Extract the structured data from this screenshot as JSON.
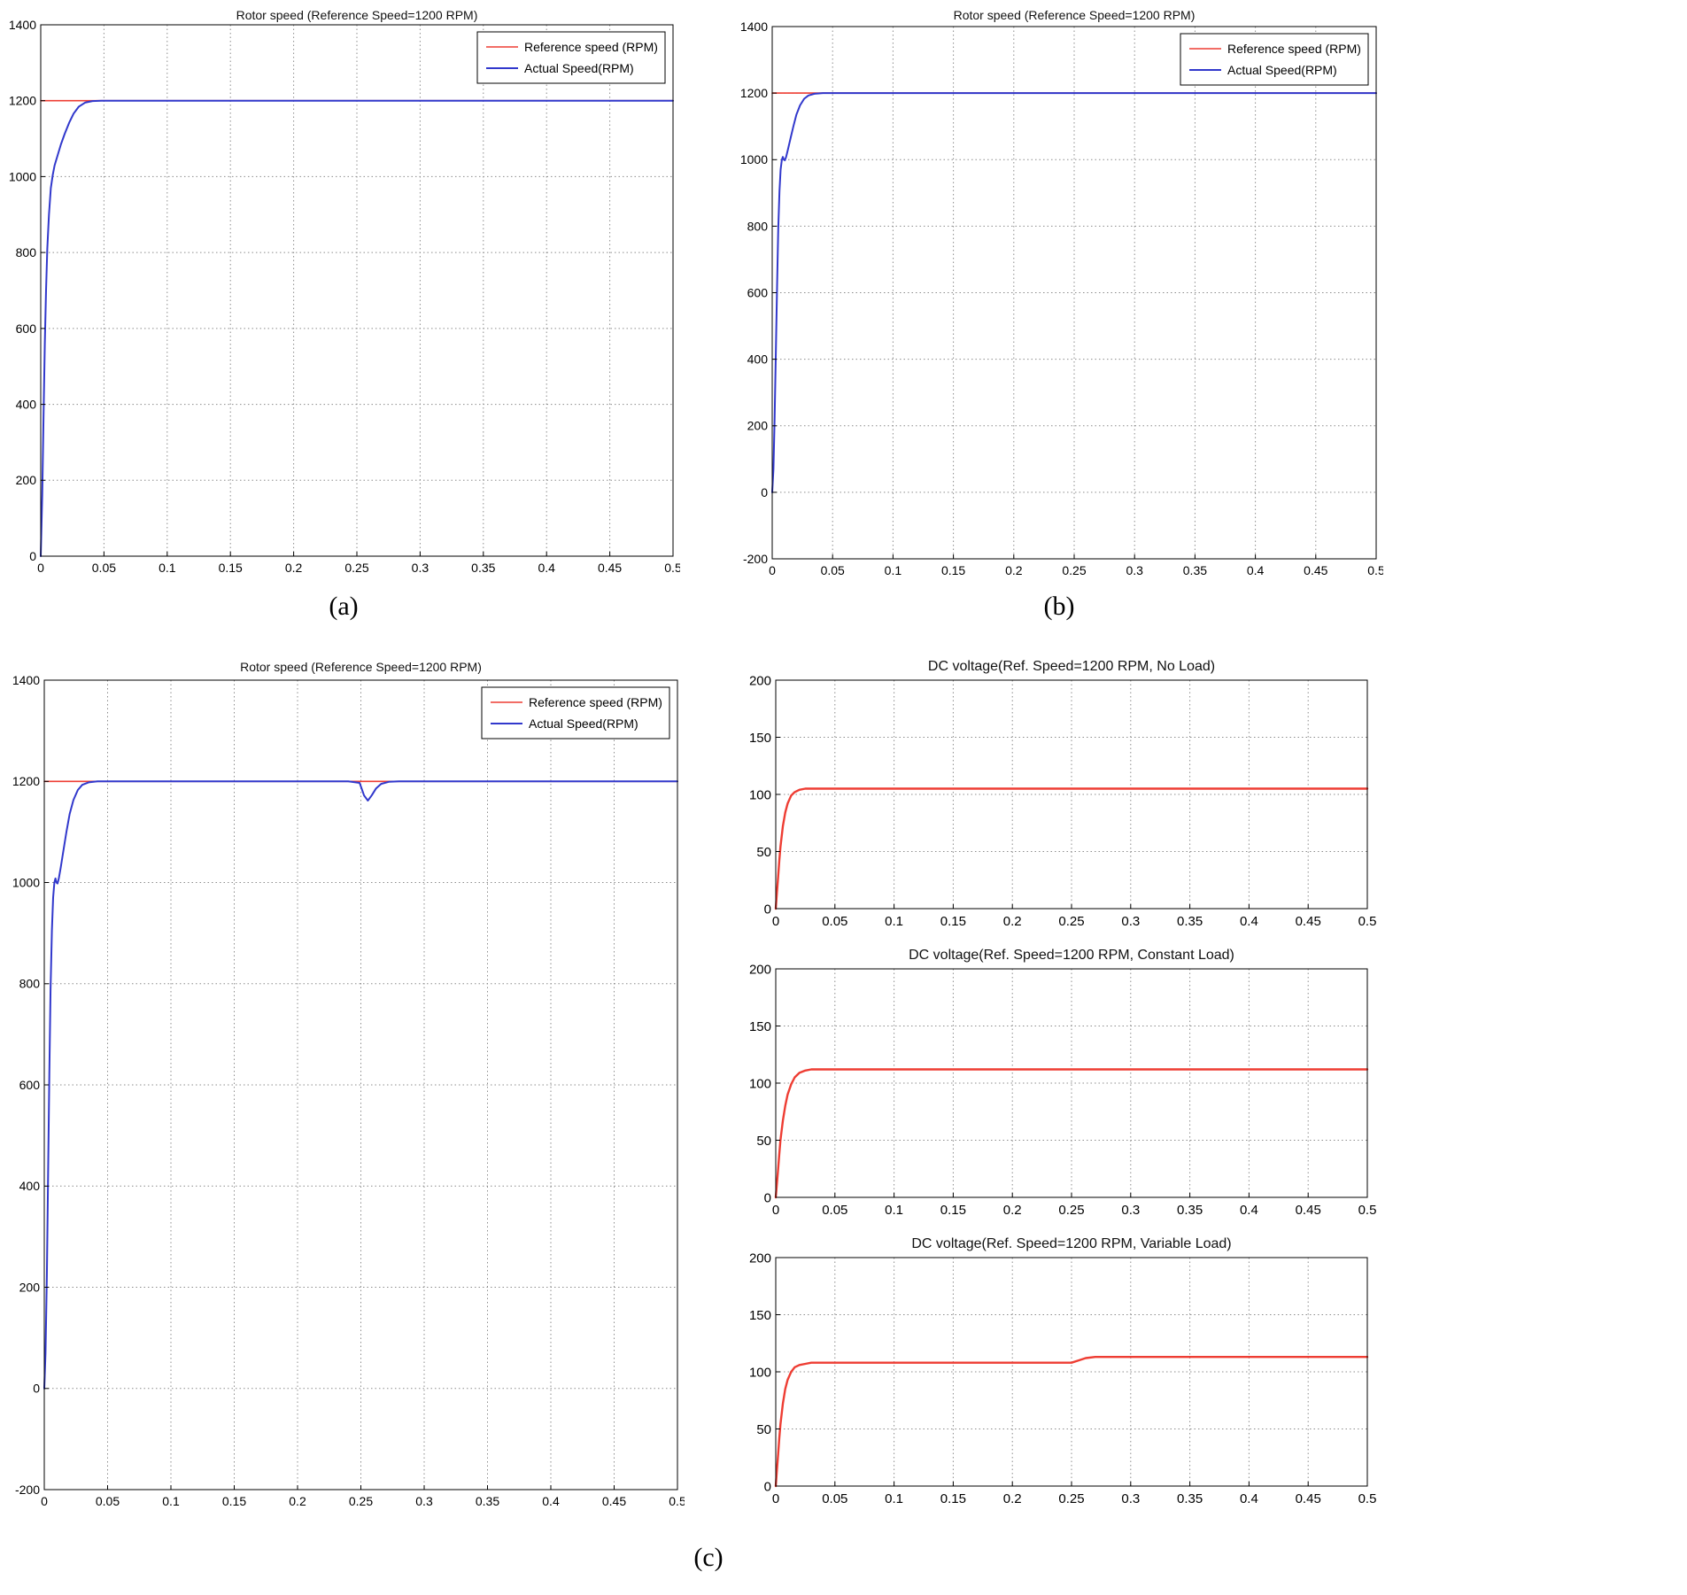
{
  "page": {
    "background": "#ffffff",
    "captions": [
      {
        "id": "a",
        "text": "(a)"
      },
      {
        "id": "b",
        "text": "(b)"
      },
      {
        "id": "c",
        "text": "(c)"
      }
    ]
  },
  "colors": {
    "reference_red": "#ee3d33",
    "actual_blue": "#3138cc",
    "grid": "#8c8c8c",
    "axis": "#000000"
  },
  "chart_data": [
    {
      "id": "rotor-speed-a",
      "type": "line",
      "title": "Rotor speed (Reference Speed=1200 RPM)",
      "xlim": [
        0,
        0.5
      ],
      "ylim": [
        0,
        1400
      ],
      "xticks": [
        0,
        0.05,
        0.1,
        0.15,
        0.2,
        0.25,
        0.3,
        0.35,
        0.4,
        0.45,
        0.5
      ],
      "yticks": [
        0,
        200,
        400,
        600,
        800,
        1000,
        1200,
        1400
      ],
      "grid": true,
      "legend": {
        "position": "northeast",
        "entries": [
          "Reference  speed (RPM)",
          "Actual Speed(RPM)"
        ]
      },
      "series": [
        {
          "name": "Reference  speed (RPM)",
          "color": "#ee3d33",
          "width": 1.6,
          "points": [
            [
              0,
              1200
            ],
            [
              0.5,
              1200
            ]
          ]
        },
        {
          "name": "Actual Speed(RPM)",
          "color": "#3138cc",
          "width": 2,
          "points": [
            [
              0,
              0
            ],
            [
              0.0012,
              160
            ],
            [
              0.0022,
              360
            ],
            [
              0.0032,
              560
            ],
            [
              0.0042,
              700
            ],
            [
              0.0052,
              810
            ],
            [
              0.0065,
              900
            ],
            [
              0.008,
              970
            ],
            [
              0.0095,
              1005
            ],
            [
              0.011,
              1030
            ],
            [
              0.0135,
              1058
            ],
            [
              0.016,
              1085
            ],
            [
              0.019,
              1113
            ],
            [
              0.0225,
              1142
            ],
            [
              0.026,
              1166
            ],
            [
              0.03,
              1184
            ],
            [
              0.035,
              1195
            ],
            [
              0.041,
              1199
            ],
            [
              0.048,
              1200
            ],
            [
              0.5,
              1200
            ]
          ]
        }
      ]
    },
    {
      "id": "rotor-speed-b",
      "type": "line",
      "title": "Rotor speed (Reference Speed=1200 RPM)",
      "xlim": [
        0,
        0.5
      ],
      "ylim": [
        -200,
        1400
      ],
      "xticks": [
        0,
        0.05,
        0.1,
        0.15,
        0.2,
        0.25,
        0.3,
        0.35,
        0.4,
        0.45,
        0.5
      ],
      "yticks": [
        -200,
        0,
        200,
        400,
        600,
        800,
        1000,
        1200,
        1400
      ],
      "grid": true,
      "legend": {
        "position": "northeast",
        "entries": [
          "Reference  speed (RPM)",
          "Actual Speed(RPM)"
        ]
      },
      "series": [
        {
          "name": "Reference  speed (RPM)",
          "color": "#ee3d33",
          "width": 1.6,
          "points": [
            [
              0,
              1200
            ],
            [
              0.5,
              1200
            ]
          ]
        },
        {
          "name": "Actual Speed(RPM)",
          "color": "#3138cc",
          "width": 2,
          "points": [
            [
              0,
              0
            ],
            [
              0.001,
              70
            ],
            [
              0.002,
              220
            ],
            [
              0.003,
              420
            ],
            [
              0.004,
              620
            ],
            [
              0.005,
              790
            ],
            [
              0.006,
              905
            ],
            [
              0.007,
              970
            ],
            [
              0.008,
              1000
            ],
            [
              0.0088,
              1008
            ],
            [
              0.0096,
              1000
            ],
            [
              0.0105,
              998
            ],
            [
              0.0115,
              1008
            ],
            [
              0.013,
              1030
            ],
            [
              0.015,
              1062
            ],
            [
              0.0175,
              1100
            ],
            [
              0.02,
              1135
            ],
            [
              0.023,
              1163
            ],
            [
              0.0265,
              1183
            ],
            [
              0.03,
              1193
            ],
            [
              0.035,
              1198
            ],
            [
              0.042,
              1200
            ],
            [
              0.5,
              1200
            ]
          ]
        }
      ]
    },
    {
      "id": "rotor-speed-c",
      "type": "line",
      "title": "Rotor speed (Reference Speed=1200 RPM)",
      "xlim": [
        0,
        0.5
      ],
      "ylim": [
        -200,
        1400
      ],
      "xticks": [
        0,
        0.05,
        0.1,
        0.15,
        0.2,
        0.25,
        0.3,
        0.35,
        0.4,
        0.45,
        0.5
      ],
      "yticks": [
        -200,
        0,
        200,
        400,
        600,
        800,
        1000,
        1200,
        1400
      ],
      "grid": true,
      "legend": {
        "position": "northeast",
        "entries": [
          "Reference  speed (RPM)",
          "Actual Speed(RPM)"
        ]
      },
      "series": [
        {
          "name": "Reference  speed (RPM)",
          "color": "#ee3d33",
          "width": 1.6,
          "points": [
            [
              0,
              1200
            ],
            [
              0.5,
              1200
            ]
          ]
        },
        {
          "name": "Actual Speed(RPM)",
          "color": "#3138cc",
          "width": 2,
          "points": [
            [
              0,
              0
            ],
            [
              0.001,
              70
            ],
            [
              0.002,
              220
            ],
            [
              0.003,
              420
            ],
            [
              0.004,
              620
            ],
            [
              0.005,
              790
            ],
            [
              0.006,
              905
            ],
            [
              0.007,
              970
            ],
            [
              0.008,
              1000
            ],
            [
              0.0088,
              1008
            ],
            [
              0.0096,
              1000
            ],
            [
              0.0105,
              998
            ],
            [
              0.0115,
              1008
            ],
            [
              0.013,
              1030
            ],
            [
              0.015,
              1062
            ],
            [
              0.0175,
              1100
            ],
            [
              0.02,
              1135
            ],
            [
              0.023,
              1163
            ],
            [
              0.0265,
              1183
            ],
            [
              0.03,
              1193
            ],
            [
              0.035,
              1198
            ],
            [
              0.042,
              1200
            ],
            [
              0.24,
              1200
            ],
            [
              0.249,
              1197
            ],
            [
              0.2525,
              1172
            ],
            [
              0.2555,
              1162
            ],
            [
              0.2585,
              1172
            ],
            [
              0.262,
              1186
            ],
            [
              0.266,
              1195
            ],
            [
              0.272,
              1199
            ],
            [
              0.28,
              1200
            ],
            [
              0.5,
              1200
            ]
          ]
        }
      ]
    },
    {
      "id": "dc-voltage-no-load",
      "type": "line",
      "title": "DC voltage(Ref. Speed=1200 RPM, No Load)",
      "xlim": [
        0,
        0.5
      ],
      "ylim": [
        0,
        200
      ],
      "xticks": [
        0,
        0.05,
        0.1,
        0.15,
        0.2,
        0.25,
        0.3,
        0.35,
        0.4,
        0.45,
        0.5
      ],
      "yticks": [
        0,
        50,
        100,
        150,
        200
      ],
      "grid": true,
      "legend": null,
      "series": [
        {
          "name": "DC voltage",
          "color": "#ee3d33",
          "width": 2.4,
          "points": [
            [
              0,
              0
            ],
            [
              0.001,
              14
            ],
            [
              0.002,
              28
            ],
            [
              0.003,
              42
            ],
            [
              0.004,
              54
            ],
            [
              0.006,
              72
            ],
            [
              0.008,
              84
            ],
            [
              0.01,
              92
            ],
            [
              0.013,
              99
            ],
            [
              0.016,
              102
            ],
            [
              0.02,
              104
            ],
            [
              0.025,
              105
            ],
            [
              0.03,
              105
            ],
            [
              0.5,
              105
            ]
          ]
        }
      ]
    },
    {
      "id": "dc-voltage-constant-load",
      "type": "line",
      "title": "DC voltage(Ref. Speed=1200 RPM, Constant Load)",
      "xlim": [
        0,
        0.5
      ],
      "ylim": [
        0,
        200
      ],
      "xticks": [
        0,
        0.05,
        0.1,
        0.15,
        0.2,
        0.25,
        0.3,
        0.35,
        0.4,
        0.45,
        0.5
      ],
      "yticks": [
        0,
        50,
        100,
        150,
        200
      ],
      "grid": true,
      "legend": null,
      "series": [
        {
          "name": "DC voltage",
          "color": "#ee3d33",
          "width": 2.4,
          "points": [
            [
              0,
              0
            ],
            [
              0.001,
              12
            ],
            [
              0.002,
              25
            ],
            [
              0.003,
              38
            ],
            [
              0.004,
              50
            ],
            [
              0.006,
              67
            ],
            [
              0.008,
              80
            ],
            [
              0.01,
              90
            ],
            [
              0.013,
              99
            ],
            [
              0.016,
              105
            ],
            [
              0.02,
              109
            ],
            [
              0.025,
              111
            ],
            [
              0.03,
              112
            ],
            [
              0.04,
              112
            ],
            [
              0.5,
              112
            ]
          ]
        }
      ]
    },
    {
      "id": "dc-voltage-variable-load",
      "type": "line",
      "title": "DC voltage(Ref. Speed=1200 RPM, Variable Load)",
      "xlim": [
        0,
        0.5
      ],
      "ylim": [
        0,
        200
      ],
      "xticks": [
        0,
        0.05,
        0.1,
        0.15,
        0.2,
        0.25,
        0.3,
        0.35,
        0.4,
        0.45,
        0.5
      ],
      "yticks": [
        0,
        50,
        100,
        150,
        200
      ],
      "grid": true,
      "legend": null,
      "series": [
        {
          "name": "DC voltage",
          "color": "#ee3d33",
          "width": 2.4,
          "points": [
            [
              0,
              0
            ],
            [
              0.001,
              14
            ],
            [
              0.002,
              28
            ],
            [
              0.003,
              42
            ],
            [
              0.004,
              54
            ],
            [
              0.006,
              72
            ],
            [
              0.008,
              85
            ],
            [
              0.01,
              93
            ],
            [
              0.013,
              100
            ],
            [
              0.016,
              104
            ],
            [
              0.02,
              106
            ],
            [
              0.025,
              107
            ],
            [
              0.03,
              108
            ],
            [
              0.25,
              108
            ],
            [
              0.256,
              110
            ],
            [
              0.262,
              112
            ],
            [
              0.27,
              113
            ],
            [
              0.5,
              113
            ]
          ]
        }
      ]
    }
  ]
}
